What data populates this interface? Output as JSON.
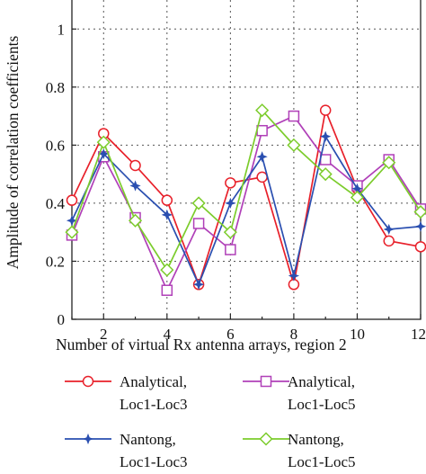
{
  "chart_data": {
    "type": "line",
    "xlabel": "Number of virtual Rx antenna arrays, region 2",
    "ylabel": "Amplitude of correlation coefficients",
    "xlim": [
      1,
      12
    ],
    "ylim": [
      0,
      1.1
    ],
    "x_ticks": [
      2,
      4,
      6,
      8,
      10,
      12
    ],
    "y_ticks": [
      0,
      0.2,
      0.4,
      0.6,
      0.8,
      1
    ],
    "x_tick_labels": [
      "2",
      "4",
      "6",
      "8",
      "10",
      "12"
    ],
    "y_tick_labels": [
      "0",
      "0.2",
      "0.4",
      "0.6",
      "0.8",
      "1"
    ],
    "grid": true,
    "legend_position": "below",
    "x": [
      1,
      2,
      3,
      4,
      5,
      6,
      7,
      8,
      9,
      10,
      11,
      12
    ],
    "series": [
      {
        "name_lines": [
          "Analytical,",
          "Loc1-Loc3"
        ],
        "color": "#e8202a",
        "marker": "circle",
        "values": [
          0.41,
          0.64,
          0.53,
          0.41,
          0.12,
          0.47,
          0.49,
          0.12,
          0.72,
          0.45,
          0.27,
          0.25
        ]
      },
      {
        "name_lines": [
          "Analytical,",
          "Loc1-Loc5"
        ],
        "color": "#b040b8",
        "marker": "square",
        "values": [
          0.29,
          0.56,
          0.35,
          0.1,
          0.33,
          0.24,
          0.65,
          0.7,
          0.55,
          0.46,
          0.55,
          0.38
        ]
      },
      {
        "name_lines": [
          "Nantong,",
          "Loc1-Loc3"
        ],
        "color": "#2a4fb0",
        "marker": "star",
        "values": [
          0.34,
          0.57,
          0.46,
          0.36,
          0.12,
          0.4,
          0.56,
          0.15,
          0.63,
          0.45,
          0.31,
          0.32
        ]
      },
      {
        "name_lines": [
          "Nantong,",
          "Loc1-Loc5"
        ],
        "color": "#7ccc2c",
        "marker": "diamond",
        "values": [
          0.3,
          0.61,
          0.34,
          0.17,
          0.4,
          0.3,
          0.72,
          0.6,
          0.5,
          0.42,
          0.54,
          0.37
        ]
      }
    ]
  }
}
